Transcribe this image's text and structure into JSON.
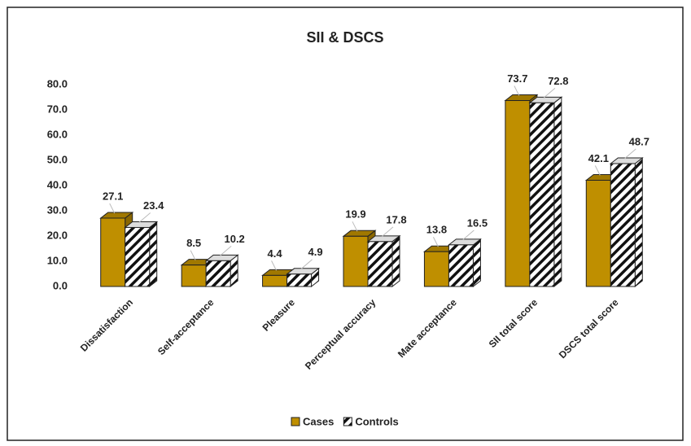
{
  "chart_data": {
    "type": "bar3d",
    "title": "SII & DSCS",
    "categories": [
      "Dissatisfaction",
      "Self-acceptance",
      "Pleasure",
      "Perceptual accuracy",
      "Mate acceptance",
      "SII total score",
      "DSCS total score"
    ],
    "series": [
      {
        "name": "Cases",
        "color": "#bf8f00",
        "values": [
          27.1,
          8.5,
          4.4,
          19.9,
          13.8,
          73.7,
          42.1
        ]
      },
      {
        "name": "Controls",
        "color": "hatched",
        "values": [
          23.4,
          10.2,
          4.9,
          17.8,
          16.5,
          72.8,
          48.7
        ]
      }
    ],
    "ylim": [
      0,
      80
    ],
    "yticks": [
      {
        "value": 0,
        "label": "0.0"
      },
      {
        "value": 10,
        "label": "10.0"
      },
      {
        "value": 20,
        "label": "20.0"
      },
      {
        "value": 30,
        "label": "30.0"
      },
      {
        "value": 40,
        "label": "40.0"
      },
      {
        "value": 50,
        "label": "50.0"
      },
      {
        "value": 60,
        "label": "60.0"
      },
      {
        "value": 70,
        "label": "70.0"
      },
      {
        "value": 80,
        "label": "80.0"
      }
    ],
    "legend": "bottom"
  }
}
